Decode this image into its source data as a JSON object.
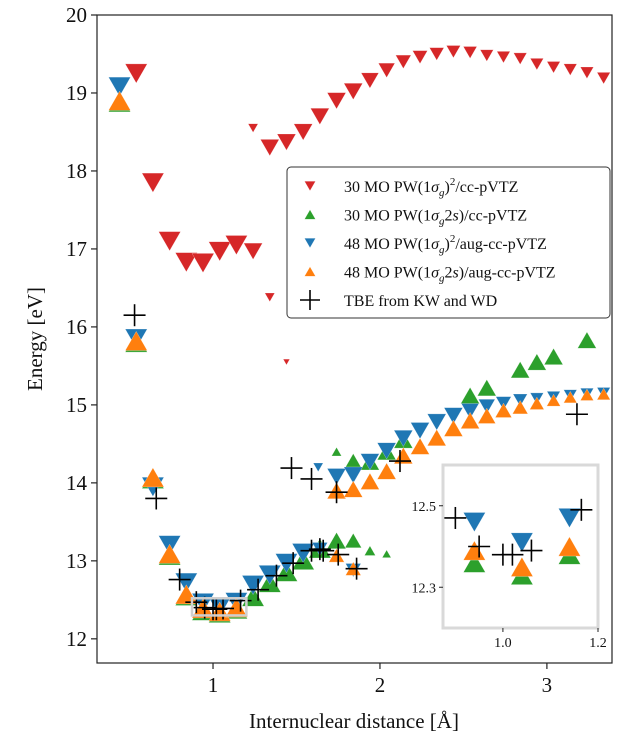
{
  "chart_data": {
    "type": "scatter",
    "title": "",
    "xlabel": "Internuclear distance [Å]",
    "ylabel": "Energy [eV]",
    "xlim": [
      0.305,
      3.39
    ],
    "ylim": [
      11.69,
      20.0
    ],
    "xticks": [
      1,
      2,
      3
    ],
    "yticks": [
      12,
      13,
      14,
      15,
      16,
      17,
      18,
      19,
      20
    ],
    "grid": false,
    "legend_position": "center-right",
    "series": [
      {
        "name": "30 MO PW(1σg)²/cc-pVTZ",
        "legend_parts": [
          "30 MO PW(1",
          "σ",
          "g",
          ")",
          "2",
          "/cc-pVTZ"
        ],
        "marker": "triangle-down",
        "color": "#d62728",
        "points": [
          [
            0.54,
            19.25,
            1.0
          ],
          [
            0.64,
            17.85,
            1.0
          ],
          [
            0.74,
            17.1,
            1.0
          ],
          [
            0.84,
            16.83,
            1.0
          ],
          [
            0.94,
            16.82,
            1.0
          ],
          [
            1.04,
            16.97,
            1.0
          ],
          [
            1.14,
            17.05,
            1.0
          ],
          [
            1.24,
            16.97,
            0.85
          ],
          [
            1.34,
            16.38,
            0.45
          ],
          [
            1.44,
            15.55,
            0.3
          ],
          [
            1.24,
            18.55,
            0.45
          ],
          [
            1.34,
            18.3,
            0.85
          ],
          [
            1.44,
            18.37,
            0.85
          ],
          [
            1.54,
            18.5,
            0.85
          ],
          [
            1.64,
            18.7,
            0.85
          ],
          [
            1.74,
            18.9,
            0.85
          ],
          [
            1.84,
            19.02,
            0.85
          ],
          [
            1.94,
            19.16,
            0.8
          ],
          [
            2.04,
            19.29,
            0.75
          ],
          [
            2.14,
            19.4,
            0.7
          ],
          [
            2.24,
            19.46,
            0.68
          ],
          [
            2.34,
            19.5,
            0.66
          ],
          [
            2.44,
            19.53,
            0.64
          ],
          [
            2.54,
            19.52,
            0.62
          ],
          [
            2.64,
            19.48,
            0.6
          ],
          [
            2.74,
            19.46,
            0.6
          ],
          [
            2.84,
            19.44,
            0.6
          ],
          [
            2.94,
            19.37,
            0.6
          ],
          [
            3.04,
            19.33,
            0.6
          ],
          [
            3.14,
            19.3,
            0.6
          ],
          [
            3.24,
            19.26,
            0.6
          ],
          [
            3.34,
            19.19,
            0.6
          ]
        ]
      },
      {
        "name": "30 MO PW(1σg2s)/cc-pVTZ",
        "legend_parts": [
          "30 MO PW(1",
          "σ",
          "g",
          "2",
          "s",
          ")/cc-pVTZ"
        ],
        "marker": "triangle-up",
        "color": "#2ca02c",
        "points": [
          [
            0.44,
            18.88,
            1.0
          ],
          [
            0.54,
            15.8,
            1.0
          ],
          [
            0.64,
            14.05,
            1.0
          ],
          [
            0.74,
            13.07,
            1.0
          ],
          [
            0.84,
            12.55,
            1.0
          ],
          [
            0.94,
            12.36,
            1.0
          ],
          [
            1.04,
            12.33,
            1.0
          ],
          [
            1.14,
            12.38,
            1.0
          ],
          [
            1.24,
            12.54,
            1.0
          ],
          [
            1.34,
            12.72,
            1.0
          ],
          [
            1.44,
            12.86,
            1.0
          ],
          [
            1.54,
            13.01,
            1.0
          ],
          [
            1.64,
            13.16,
            1.0
          ],
          [
            1.74,
            13.26,
            0.85
          ],
          [
            1.84,
            13.26,
            0.75
          ],
          [
            1.94,
            13.13,
            0.5
          ],
          [
            2.04,
            13.09,
            0.4
          ],
          [
            1.74,
            14.4,
            0.45
          ],
          [
            1.84,
            14.27,
            0.85
          ],
          [
            1.94,
            14.27,
            0.85
          ],
          [
            2.04,
            14.4,
            0.85
          ],
          [
            2.14,
            14.55,
            0.85
          ],
          [
            2.54,
            15.12,
            0.85
          ],
          [
            2.64,
            15.22,
            0.85
          ],
          [
            2.84,
            15.45,
            0.85
          ],
          [
            2.94,
            15.55,
            0.85
          ],
          [
            3.04,
            15.62,
            0.85
          ],
          [
            3.24,
            15.83,
            0.85
          ]
        ]
      },
      {
        "name": "48 MO PW(1σg)²/aug-cc-pVTZ",
        "legend_parts": [
          "48 MO PW(1",
          "σ",
          "g",
          ")",
          "2",
          "/aug-cc-pVTZ"
        ],
        "marker": "triangle-down",
        "color": "#1f77b4",
        "points": [
          [
            0.44,
            19.08,
            1.0
          ],
          [
            0.54,
            15.85,
            1.0
          ],
          [
            0.64,
            13.95,
            1.0
          ],
          [
            0.74,
            13.2,
            1.0
          ],
          [
            0.84,
            12.72,
            1.0
          ],
          [
            0.94,
            12.46,
            1.0
          ],
          [
            1.04,
            12.41,
            1.0
          ],
          [
            1.14,
            12.47,
            1.0
          ],
          [
            1.24,
            12.69,
            1.0
          ],
          [
            1.34,
            12.82,
            1.0
          ],
          [
            1.44,
            12.97,
            1.0
          ],
          [
            1.54,
            13.1,
            1.0
          ],
          [
            1.64,
            13.15,
            0.7
          ],
          [
            1.84,
            12.88,
            0.7
          ],
          [
            1.63,
            14.2,
            0.45
          ],
          [
            1.74,
            14.08,
            0.85
          ],
          [
            1.84,
            14.1,
            0.85
          ],
          [
            1.94,
            14.27,
            0.85
          ],
          [
            2.04,
            14.41,
            0.85
          ],
          [
            2.14,
            14.57,
            0.85
          ],
          [
            2.24,
            14.67,
            0.85
          ],
          [
            2.34,
            14.78,
            0.85
          ],
          [
            2.44,
            14.86,
            0.85
          ],
          [
            2.54,
            14.92,
            0.8
          ],
          [
            2.64,
            14.98,
            0.75
          ],
          [
            2.74,
            15.02,
            0.7
          ],
          [
            2.84,
            15.06,
            0.65
          ],
          [
            2.94,
            15.08,
            0.6
          ],
          [
            3.04,
            15.1,
            0.6
          ],
          [
            3.14,
            15.12,
            0.6
          ],
          [
            3.24,
            15.14,
            0.6
          ],
          [
            3.34,
            15.15,
            0.6
          ]
        ]
      },
      {
        "name": "48 MO PW(1σg2s)/aug-cc-pVTZ",
        "legend_parts": [
          "48 MO PW(1",
          "σ",
          "g",
          "2",
          "s",
          ")/aug-cc-pVTZ"
        ],
        "marker": "triangle-up",
        "color": "#ff7f0e",
        "points": [
          [
            0.44,
            18.9,
            1.0
          ],
          [
            0.54,
            15.82,
            1.0
          ],
          [
            0.64,
            14.07,
            1.0
          ],
          [
            0.74,
            13.09,
            1.0
          ],
          [
            0.84,
            12.57,
            1.0
          ],
          [
            0.94,
            12.39,
            1.0
          ],
          [
            1.04,
            12.35,
            1.0
          ],
          [
            1.14,
            12.4,
            1.0
          ],
          [
            1.74,
            13.07,
            0.7
          ],
          [
            1.84,
            12.9,
            0.7
          ],
          [
            1.74,
            13.9,
            0.85
          ],
          [
            1.84,
            13.92,
            0.85
          ],
          [
            1.94,
            14.02,
            0.85
          ],
          [
            2.04,
            14.15,
            0.85
          ],
          [
            2.14,
            14.35,
            0.85
          ],
          [
            2.24,
            14.47,
            0.85
          ],
          [
            2.34,
            14.58,
            0.85
          ],
          [
            2.44,
            14.7,
            0.85
          ],
          [
            2.54,
            14.8,
            0.85
          ],
          [
            2.64,
            14.86,
            0.8
          ],
          [
            2.74,
            14.93,
            0.75
          ],
          [
            2.84,
            14.97,
            0.7
          ],
          [
            2.94,
            15.02,
            0.65
          ],
          [
            3.04,
            15.06,
            0.62
          ],
          [
            3.14,
            15.1,
            0.6
          ],
          [
            3.24,
            15.13,
            0.6
          ],
          [
            3.34,
            15.14,
            0.6
          ]
        ]
      },
      {
        "name": "TBE from KW and WD",
        "legend_parts": [
          "TBE from KW and WD"
        ],
        "marker": "plus",
        "color": "#000000",
        "points": [
          [
            0.53,
            16.15,
            1.0
          ],
          [
            0.66,
            13.8,
            1.0
          ],
          [
            0.8,
            12.76,
            1.0
          ],
          [
            0.9,
            12.47,
            1.0
          ],
          [
            0.95,
            12.4,
            1.0
          ],
          [
            1.0,
            12.38,
            1.0
          ],
          [
            1.02,
            12.38,
            1.0
          ],
          [
            1.06,
            12.39,
            1.0
          ],
          [
            1.165,
            12.49,
            1.0
          ],
          [
            1.27,
            12.63,
            1.0
          ],
          [
            1.38,
            12.81,
            1.0
          ],
          [
            1.48,
            12.97,
            1.0
          ],
          [
            1.59,
            13.13,
            1.0
          ],
          [
            1.64,
            13.15,
            1.0
          ],
          [
            1.66,
            13.13,
            1.0
          ],
          [
            1.75,
            13.08,
            1.0
          ],
          [
            1.86,
            12.9,
            1.0
          ],
          [
            1.47,
            14.19,
            1.0
          ],
          [
            1.59,
            14.05,
            1.0
          ],
          [
            1.74,
            13.88,
            1.0
          ],
          [
            2.12,
            14.28,
            1.0
          ],
          [
            3.18,
            14.88,
            1.0
          ]
        ]
      }
    ],
    "inset": {
      "xlim": [
        0.874,
        1.2
      ],
      "ylim": [
        12.2,
        12.6
      ],
      "xticks": [
        1.0,
        1.2
      ],
      "xtick_labels": [
        "1.0",
        "1.2"
      ],
      "yticks": [
        12.3,
        12.5
      ],
      "ytick_labels": [
        "12.3",
        "12.5"
      ],
      "zoom_region": {
        "xlim": [
          0.874,
          1.2
        ],
        "ylim": [
          12.3,
          12.52
        ]
      }
    }
  }
}
